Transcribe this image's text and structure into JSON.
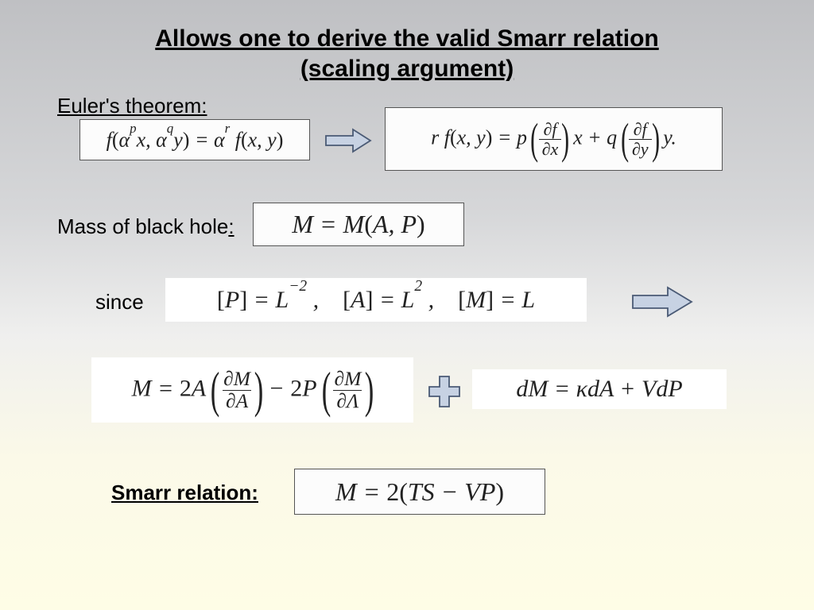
{
  "title_line1": "Allows one to derive the valid Smarr relation",
  "title_line2": "(scaling argument)",
  "labels": {
    "euler": "Euler's theorem:",
    "mass": "Mass of black hole",
    "mass_colon": ":",
    "since": "since",
    "smarr": "Smarr relation:"
  },
  "equations": {
    "euler_lhs_html": "<span class='eq'>f<span class='upright'>(</span>α<sup>p</sup>x, α<sup>q</sup>y<span class='upright'>)</span> = α<sup>r</sup> f<span class='upright'>(</span>x, y<span class='upright'>)</span></span>",
    "euler_rhs_html": "<span class='eq'>r f<span class='upright'>(</span>x, y<span class='upright'>)</span> = p <span class='paren-big'>(</span><span class='frac'><span class='num'>∂f</span><span class='den'>∂x</span></span><span class='paren-big'>)</span> x + q <span class='paren-big'>(</span><span class='frac'><span class='num'>∂f</span><span class='den'>∂y</span></span><span class='paren-big'>)</span> y.</span>",
    "mass_html": "<span class='eq'>M = M<span class='upright'>(</span>A, P<span class='upright'>)</span></span>",
    "dims_html": "<span class='eq'><span class='upright'>[</span>P<span class='upright'>]</span> = L<sup>−2</sup> ,&nbsp;&nbsp;&nbsp;&nbsp;<span class='upright'>[</span>A<span class='upright'>]</span> = L<sup>2</sup> ,&nbsp;&nbsp;&nbsp;&nbsp;<span class='upright'>[</span>M<span class='upright'>]</span> = L</span>",
    "m_eq_html": "<span class='eq'>M = <span class='upright'>2</span>A <span class='paren-big'>(</span><span class='frac'><span class='num'>∂M</span><span class='den'>∂A</span></span><span class='paren-big'>)</span> − <span class='upright'>2</span>P <span class='paren-big'>(</span><span class='frac'><span class='num'>∂M</span><span class='den'>∂Λ</span></span><span class='paren-big'>)</span></span>",
    "dm_eq_html": "<span class='eq'>dM = κdA + VdP</span>",
    "smarr_html": "<span class='eq'>M = <span class='upright'>2(</span>TS − VP<span class='upright'>)</span></span>"
  },
  "arrow_style": {
    "fill": "#c7d2e3",
    "stroke": "#4a5a75",
    "stroke_width": 1.8
  },
  "plus_style": {
    "fill": "#c7d2e3",
    "stroke": "#4a5a75",
    "stroke_width": 1.8
  },
  "background_gradient": [
    "#bfc0c3",
    "#d6d7d9",
    "#efefee",
    "#fbf9e8",
    "#fefde6"
  ]
}
